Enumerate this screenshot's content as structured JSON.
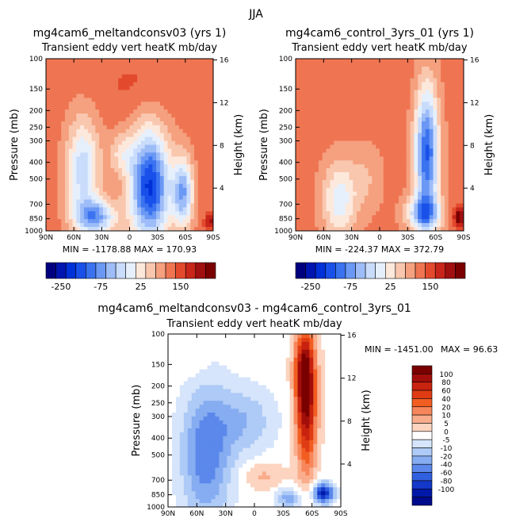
{
  "page_title": "JJA",
  "chart_data": [
    {
      "type": "heatmap",
      "title": "mg4cam6_meltandconsv03 (yrs 1)",
      "subtitle": "Transient eddy vert heatK mb/day",
      "ylabel": "Pressure (mb)",
      "y2label": "Height (km)",
      "x_ticks": [
        "90N",
        "60N",
        "30N",
        "0",
        "30S",
        "60S",
        "90S"
      ],
      "y_ticks": [
        "100",
        "150",
        "200",
        "250",
        "300",
        "400",
        "500",
        "700",
        "850",
        "1000"
      ],
      "y2_ticks": [
        "16",
        "12",
        "8",
        "4"
      ],
      "stats": "MIN = -1178.88   MAX = 170.93",
      "colorbar_labels": [
        "-250",
        "-75",
        "25",
        "150"
      ],
      "colorbar_colors": [
        "#00007f",
        "#0015b0",
        "#0030d8",
        "#1a50ea",
        "#3a72f0",
        "#6a98f4",
        "#9dbcf8",
        "#c9dcfb",
        "#e6f0fd",
        "#fde8dc",
        "#f9c7ae",
        "#f5a07e",
        "#ef7552",
        "#e34a2d",
        "#c8261a",
        "#a11010",
        "#7a0000"
      ]
    },
    {
      "type": "heatmap",
      "title": "mg4cam6_control_3yrs_01 (yrs 1)",
      "subtitle": "Transient eddy vert heatK mb/day",
      "ylabel": "Pressure (mb)",
      "y2label": "Height (km)",
      "x_ticks": [
        "90N",
        "60N",
        "30N",
        "0",
        "30S",
        "60S",
        "90S"
      ],
      "y_ticks": [
        "100",
        "150",
        "200",
        "250",
        "300",
        "400",
        "500",
        "700",
        "850",
        "1000"
      ],
      "y2_ticks": [
        "16",
        "12",
        "8",
        "4"
      ],
      "stats": "MIN = -224.37   MAX = 372.79",
      "colorbar_labels": [
        "-250",
        "-75",
        "25",
        "150"
      ],
      "colorbar_colors": [
        "#00007f",
        "#0015b0",
        "#0030d8",
        "#1a50ea",
        "#3a72f0",
        "#6a98f4",
        "#9dbcf8",
        "#c9dcfb",
        "#e6f0fd",
        "#fde8dc",
        "#f9c7ae",
        "#f5a07e",
        "#ef7552",
        "#e34a2d",
        "#c8261a",
        "#a11010",
        "#7a0000"
      ]
    },
    {
      "type": "heatmap",
      "title": "mg4cam6_meltandconsv03 - mg4cam6_control_3yrs_01",
      "subtitle": "Transient eddy vert heatK mb/day",
      "ylabel": "Pressure (mb)",
      "y2label": "Height (km)",
      "x_ticks": [
        "90N",
        "60N",
        "30N",
        "0",
        "30S",
        "60S",
        "90S"
      ],
      "y_ticks": [
        "100",
        "150",
        "200",
        "250",
        "300",
        "400",
        "500",
        "700",
        "850",
        "1000"
      ],
      "y2_ticks": [
        "16",
        "12",
        "8",
        "4"
      ],
      "stats_min": "MIN = -1451.00",
      "stats_max": "MAX =  96.63",
      "colorbar_labels": [
        "100",
        "80",
        "60",
        "40",
        "20",
        "10",
        "5",
        "0",
        "-5",
        "-10",
        "-20",
        "-40",
        "-60",
        "-80",
        "-100"
      ],
      "colorbar_colors": [
        "#7a0000",
        "#a30e0a",
        "#c8230f",
        "#e03c14",
        "#f25d22",
        "#f7865a",
        "#f9ad8c",
        "#fcd4c0",
        "#ffffff",
        "#d6e5fb",
        "#aecaf6",
        "#86acf1",
        "#5b88ea",
        "#3060df",
        "#1438c8",
        "#0018a8",
        "#000a8c"
      ]
    }
  ]
}
